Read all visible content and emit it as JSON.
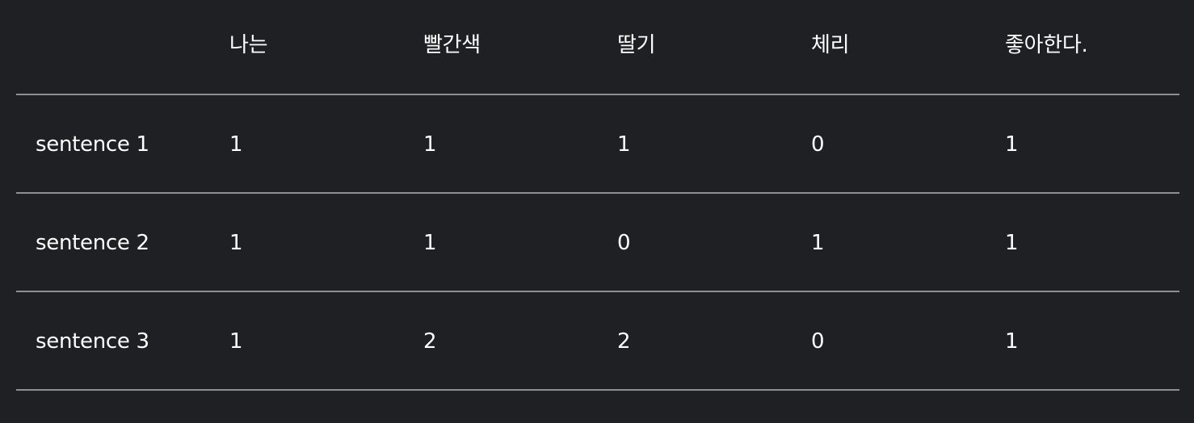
{
  "table": {
    "headers": [
      "",
      "나는",
      "빨간색",
      "딸기",
      "체리",
      "좋아한다."
    ],
    "rows": [
      {
        "label": "sentence 1",
        "values": [
          "1",
          "1",
          "1",
          "0",
          "1"
        ]
      },
      {
        "label": "sentence 2",
        "values": [
          "1",
          "1",
          "0",
          "1",
          "1"
        ]
      },
      {
        "label": "sentence 3",
        "values": [
          "1",
          "2",
          "2",
          "0",
          "1"
        ]
      }
    ]
  },
  "colors": {
    "background": "#1f2023",
    "text": "#ffffff",
    "divider": "#8e8f92"
  }
}
